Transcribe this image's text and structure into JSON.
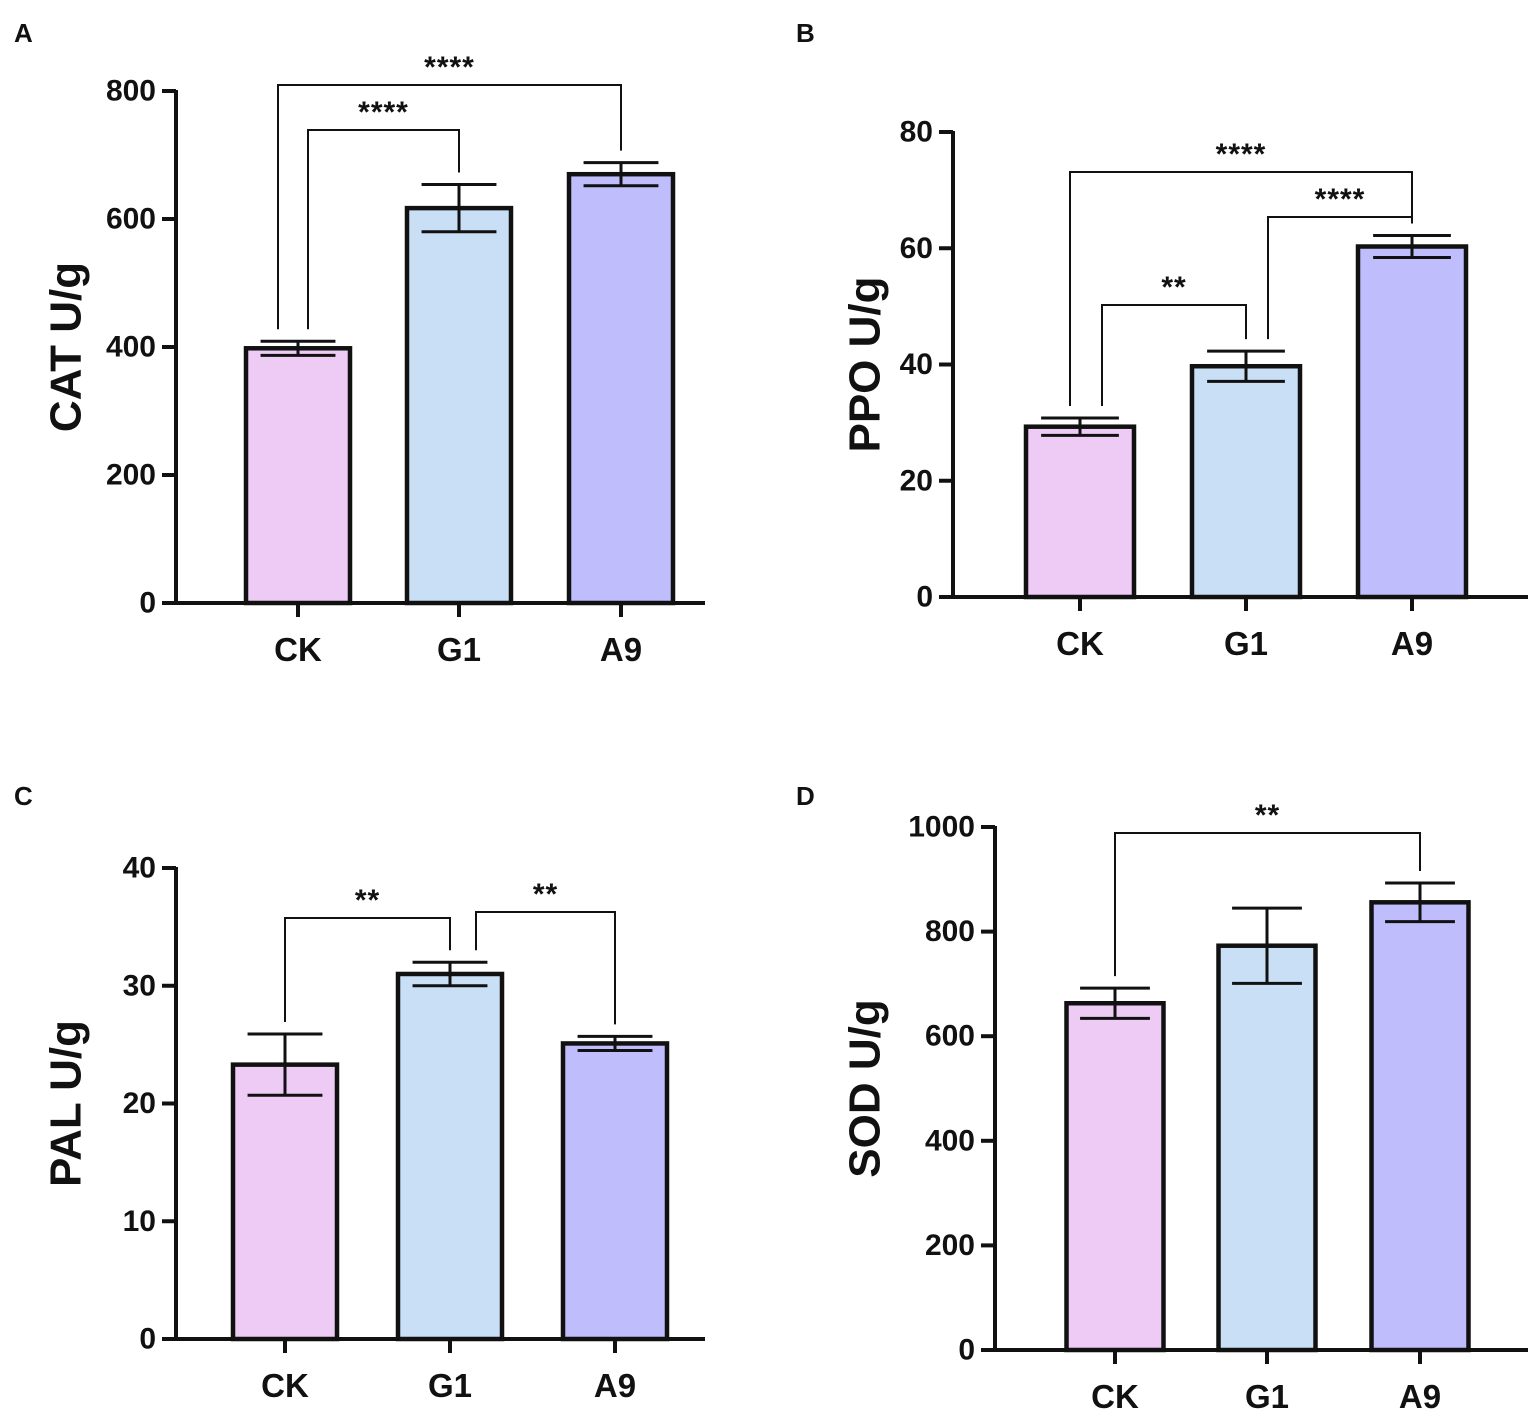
{
  "figure": {
    "category_colors": {
      "CK": "#EDCBF5",
      "G1": "#C9DFF6",
      "A9": "#BFBDFC"
    },
    "stroke_color": "#111111"
  },
  "chart_data": [
    {
      "panel": "A",
      "type": "bar",
      "categories": [
        "CK",
        "G1",
        "A9"
      ],
      "values": [
        398,
        617,
        670
      ],
      "errors": [
        11,
        37,
        18
      ],
      "ylabel": "CAT U/g",
      "ylim": [
        0,
        800
      ],
      "yticks": [
        0,
        200,
        400,
        600,
        800
      ],
      "significance": [
        {
          "from": "CK",
          "to": "G1",
          "label": "****"
        },
        {
          "from": "CK",
          "to": "A9",
          "label": "****"
        }
      ]
    },
    {
      "panel": "B",
      "type": "bar",
      "categories": [
        "CK",
        "G1",
        "A9"
      ],
      "values": [
        29.3,
        39.7,
        60.3
      ],
      "errors": [
        1.5,
        2.6,
        1.9
      ],
      "ylabel": "PPO U/g",
      "ylim": [
        0,
        80
      ],
      "yticks": [
        0,
        20,
        40,
        60,
        80
      ],
      "significance": [
        {
          "from": "CK",
          "to": "G1",
          "label": "**"
        },
        {
          "from": "G1",
          "to": "A9",
          "label": "****"
        },
        {
          "from": "CK",
          "to": "A9",
          "label": "****"
        }
      ]
    },
    {
      "panel": "C",
      "type": "bar",
      "categories": [
        "CK",
        "G1",
        "A9"
      ],
      "values": [
        23.3,
        31.0,
        25.1
      ],
      "errors": [
        2.6,
        1.0,
        0.6
      ],
      "ylabel": "PAL U/g",
      "ylim": [
        0,
        40
      ],
      "yticks": [
        0,
        10,
        20,
        30,
        40
      ],
      "significance": [
        {
          "from": "CK",
          "to": "G1",
          "label": "**"
        },
        {
          "from": "G1",
          "to": "A9",
          "label": "**"
        }
      ]
    },
    {
      "panel": "D",
      "type": "bar",
      "categories": [
        "CK",
        "G1",
        "A9"
      ],
      "values": [
        663,
        773,
        856
      ],
      "errors": [
        29,
        72,
        37
      ],
      "ylabel": "SOD U/g",
      "ylim": [
        0,
        1000
      ],
      "yticks": [
        0,
        200,
        400,
        600,
        800,
        1000
      ],
      "significance": [
        {
          "from": "CK",
          "to": "A9",
          "label": "**"
        }
      ]
    }
  ]
}
